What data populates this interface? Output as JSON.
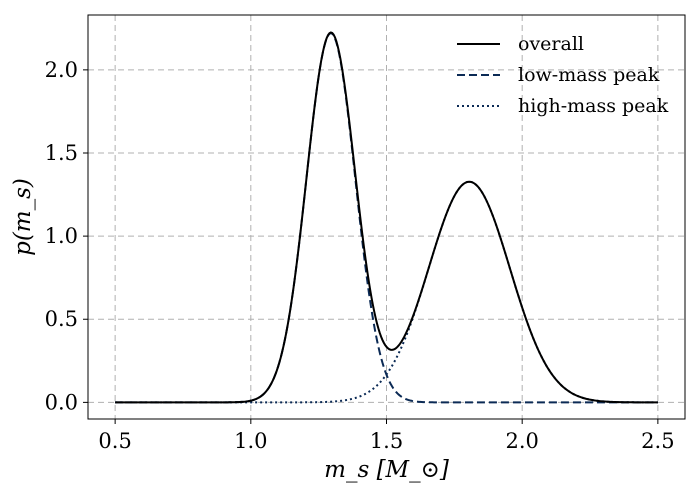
{
  "chart_data": {
    "type": "line",
    "title": "",
    "xlabel": "m_s [M_⊙]",
    "ylabel": "p(m_s)",
    "xlim": [
      0.4,
      2.6
    ],
    "ylim": [
      -0.1,
      2.33
    ],
    "xticks": [
      0.5,
      1.0,
      1.5,
      2.0,
      2.5
    ],
    "xtick_labels": [
      "0.5",
      "1.0",
      "1.5",
      "2.0",
      "2.5"
    ],
    "yticks": [
      0.0,
      0.5,
      1.0,
      1.5,
      2.0
    ],
    "ytick_labels": [
      "0.0",
      "0.5",
      "1.0",
      "1.5",
      "2.0"
    ],
    "grid": true,
    "legend_position": "top-right",
    "x_range": [
      0.5,
      2.5
    ],
    "series": [
      {
        "name": "overall",
        "style": "solid",
        "color": "#000000"
      },
      {
        "name": "low-mass peak",
        "style": "dashed",
        "color": "#0b2a55"
      },
      {
        "name": "high-mass peak",
        "style": "dotted",
        "color": "#0b2a55"
      }
    ],
    "components": {
      "low": {
        "mean": 1.295,
        "std": 0.09,
        "weight": 0.501,
        "peak": 2.22
      },
      "high": {
        "mean": 1.805,
        "std": 0.15,
        "weight": 0.499,
        "peak": 1.33
      }
    }
  }
}
